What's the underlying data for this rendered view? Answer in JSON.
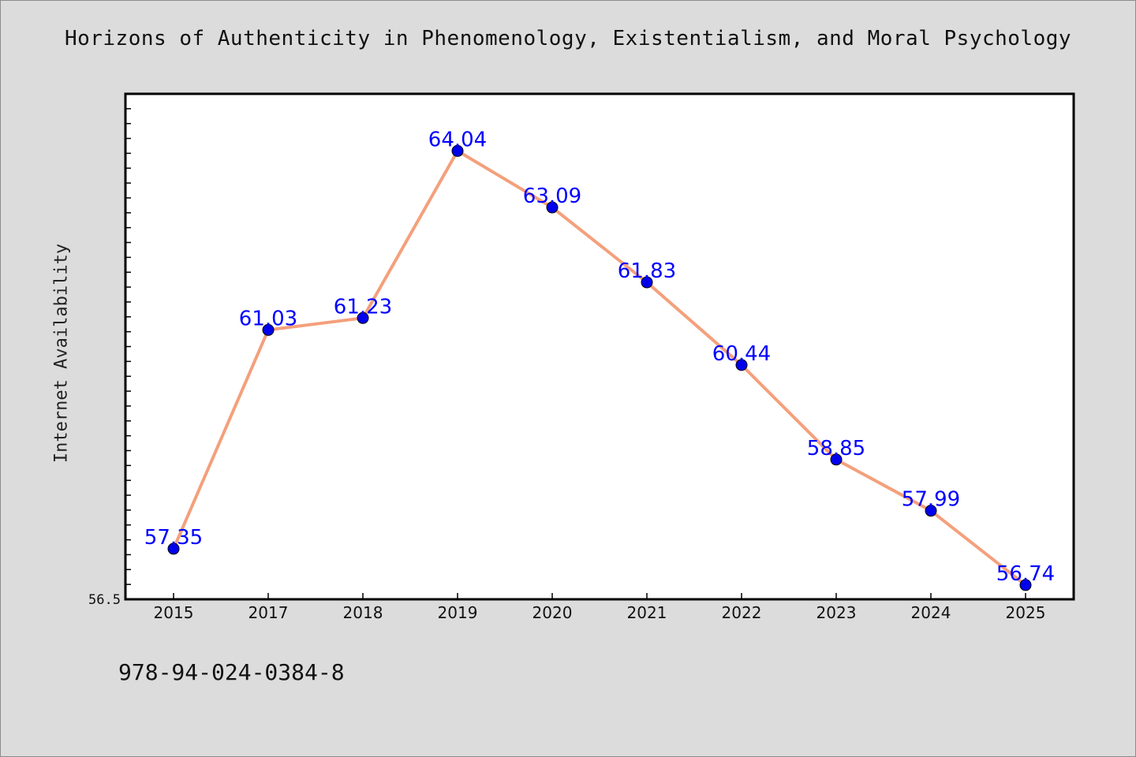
{
  "chart_data": {
    "type": "line",
    "title": "Horizons of Authenticity in Phenomenology, Existentialism, and Moral Psychology",
    "xlabel": "",
    "ylabel": "Internet Availability",
    "categories": [
      "2015",
      "2017",
      "2018",
      "2019",
      "2020",
      "2021",
      "2022",
      "2023",
      "2024",
      "2025"
    ],
    "series": [
      {
        "values": [
          57.35,
          61.03,
          61.23,
          64.04,
          63.09,
          61.83,
          60.44,
          58.85,
          57.99,
          56.74
        ],
        "data_labels": [
          "57.35",
          "61.03",
          "61.23",
          "64.04",
          "63.09",
          "61.83",
          "60.44",
          "58.85",
          "57.99",
          "56.74"
        ],
        "line_color": "#f4a07c",
        "marker_color": "#0000ee"
      }
    ],
    "yticks": [
      "56.5"
    ],
    "ylim": [
      56.5,
      65.0
    ],
    "grid": false,
    "legend": "none"
  },
  "footer_text": "978-94-024-0384-8",
  "colors": {
    "background": "#dcdcdc",
    "plot_background": "#ffffff",
    "label_color": "#0000ff"
  }
}
